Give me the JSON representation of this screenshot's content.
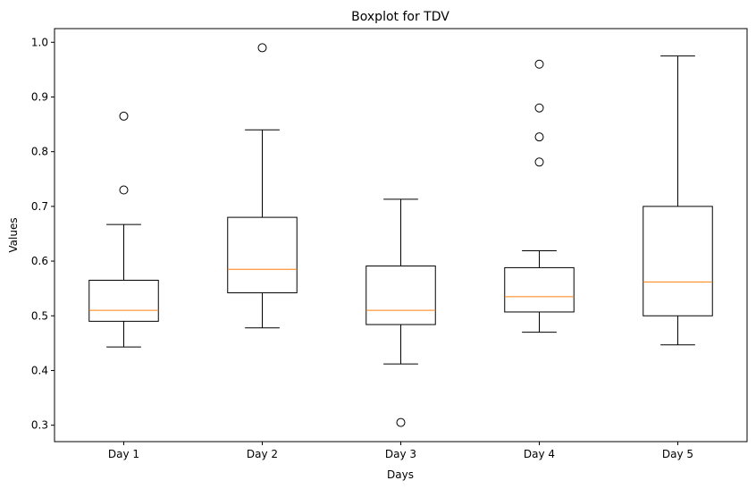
{
  "chart_data": {
    "type": "boxplot",
    "title": "Boxplot for TDV",
    "xlabel": "Days",
    "ylabel": "Values",
    "ylim": [
      0.27,
      1.025
    ],
    "yticks": [
      "0.3",
      "0.4",
      "0.5",
      "0.6",
      "0.7",
      "0.8",
      "0.9",
      "1.0"
    ],
    "grid": false,
    "colors": {
      "box": "#000000",
      "median": "#ff7f0e"
    },
    "categories": [
      "Day 1",
      "Day 2",
      "Day 3",
      "Day 4",
      "Day 5"
    ],
    "boxes": [
      {
        "category": "Day 1",
        "whisker_low": 0.443,
        "q1": 0.49,
        "median": 0.51,
        "q3": 0.565,
        "whisker_high": 0.667,
        "outliers": [
          0.73,
          0.865
        ]
      },
      {
        "category": "Day 2",
        "whisker_low": 0.478,
        "q1": 0.542,
        "median": 0.585,
        "q3": 0.68,
        "whisker_high": 0.84,
        "outliers": [
          0.99
        ]
      },
      {
        "category": "Day 3",
        "whisker_low": 0.412,
        "q1": 0.484,
        "median": 0.51,
        "q3": 0.591,
        "whisker_high": 0.713,
        "outliers": [
          0.305
        ]
      },
      {
        "category": "Day 4",
        "whisker_low": 0.47,
        "q1": 0.507,
        "median": 0.535,
        "q3": 0.588,
        "whisker_high": 0.619,
        "outliers": [
          0.781,
          0.827,
          0.88,
          0.96
        ]
      },
      {
        "category": "Day 5",
        "whisker_low": 0.447,
        "q1": 0.5,
        "median": 0.562,
        "q3": 0.7,
        "whisker_high": 0.975,
        "outliers": []
      }
    ]
  }
}
